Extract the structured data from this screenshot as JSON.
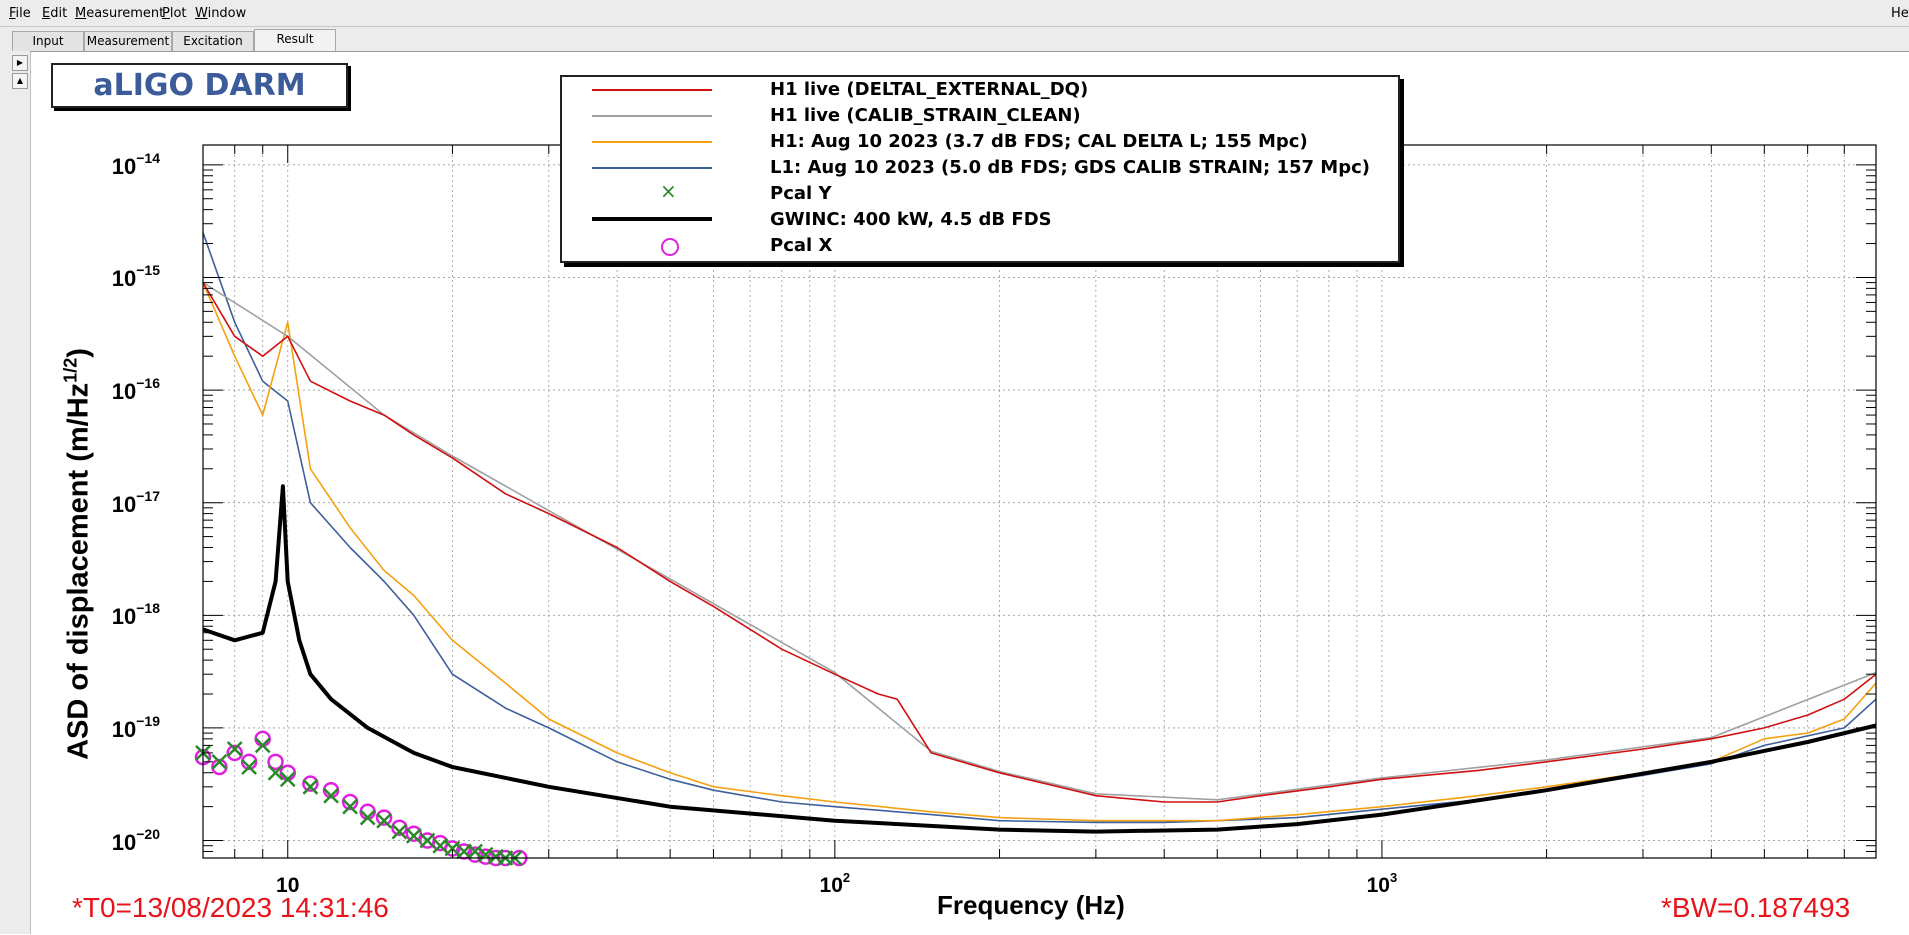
{
  "menubar": {
    "items": [
      {
        "label": "File",
        "key": "F",
        "rest": "ile"
      },
      {
        "label": "Edit",
        "key": "E",
        "rest": "dit"
      },
      {
        "label": "Measurement",
        "key": "M",
        "rest": "easurement"
      },
      {
        "label": "Plot",
        "key": "P",
        "rest": "lot"
      },
      {
        "label": "Window",
        "key": "W",
        "rest": "indow"
      }
    ],
    "help_fragment": "He"
  },
  "tabs": [
    {
      "label": "Input"
    },
    {
      "label": "Measurement"
    },
    {
      "label": "Excitation"
    },
    {
      "label": "Result",
      "active": true
    }
  ],
  "plot": {
    "title": "aLIGO DARM",
    "timestamp": "*T0=13/08/2023 14:31:46",
    "bandwidth": "*BW=0.187493"
  },
  "chart_data": {
    "type": "line",
    "xlabel": "Frequency (Hz)",
    "ylabel_main": "ASD of displacement (m/Hz",
    "ylabel_sup": "1/2",
    "ylabel_close": ")",
    "xscale": "log",
    "yscale": "log",
    "xlim": [
      7,
      8000
    ],
    "ylim": [
      7e-21,
      1.5e-14
    ],
    "grid": true,
    "legend_position": "top-center",
    "x_ticks": [
      {
        "base": "10",
        "exp": "",
        "value": 10
      },
      {
        "base": "10",
        "exp": "2",
        "value": 100
      },
      {
        "base": "10",
        "exp": "3",
        "value": 1000
      }
    ],
    "y_ticks": [
      {
        "base": "10",
        "exp": "−14",
        "value": 1e-14
      },
      {
        "base": "10",
        "exp": "−15",
        "value": 1e-15
      },
      {
        "base": "10",
        "exp": "−16",
        "value": 1e-16
      },
      {
        "base": "10",
        "exp": "−17",
        "value": 1e-17
      },
      {
        "base": "10",
        "exp": "−18",
        "value": 1e-18
      },
      {
        "base": "10",
        "exp": "−19",
        "value": 1e-19
      },
      {
        "base": "10",
        "exp": "−20",
        "value": 1e-20
      }
    ],
    "series": [
      {
        "name": "H1 live (DELTAL_EXTERNAL_DQ)",
        "color": "#d01010",
        "style": "line",
        "x": [
          7,
          8,
          9,
          10,
          11,
          13,
          15,
          17,
          20,
          25,
          30,
          40,
          50,
          60,
          80,
          100,
          120,
          130,
          150,
          200,
          300,
          400,
          500,
          600,
          800,
          1000,
          1500,
          2000,
          3000,
          4000,
          5000,
          6000,
          7000,
          8000
        ],
        "y": [
          9e-16,
          3e-16,
          2e-16,
          3e-16,
          1.2e-16,
          8e-17,
          6e-17,
          4e-17,
          2.5e-17,
          1.2e-17,
          8e-18,
          4e-18,
          2e-18,
          1.2e-18,
          5e-19,
          3e-19,
          2e-19,
          1.8e-19,
          6e-20,
          4e-20,
          2.5e-20,
          2.2e-20,
          2.2e-20,
          2.5e-20,
          3e-20,
          3.5e-20,
          4.2e-20,
          5e-20,
          6.5e-20,
          8e-20,
          1e-19,
          1.3e-19,
          1.8e-19,
          3e-19
        ]
      },
      {
        "name": "H1 live (CALIB_STRAIN_CLEAN)",
        "color": "#a0a0a0",
        "style": "line",
        "x": [
          7,
          10,
          15,
          20,
          30,
          50,
          100,
          150,
          200,
          300,
          500,
          1000,
          2000,
          4000,
          8000
        ],
        "y": [
          9e-16,
          3e-16,
          6e-17,
          2.6e-17,
          8.5e-18,
          2.1e-18,
          3.1e-19,
          6.2e-20,
          4.1e-20,
          2.6e-20,
          2.3e-20,
          3.6e-20,
          5.2e-20,
          8.2e-20,
          3.1e-19
        ]
      },
      {
        "name": "H1: Aug 10 2023 (3.7 dB FDS; CAL DELTA L; 155 Mpc)",
        "color": "#f5a010",
        "style": "line",
        "x": [
          7,
          8,
          9,
          10,
          11,
          13,
          15,
          17,
          20,
          25,
          30,
          40,
          50,
          60,
          80,
          100,
          150,
          200,
          300,
          400,
          500,
          700,
          1000,
          1500,
          2000,
          3000,
          4000,
          5000,
          6000,
          7000,
          8000
        ],
        "y": [
          9e-16,
          2e-16,
          6e-17,
          4e-16,
          2e-17,
          6e-18,
          2.5e-18,
          1.5e-18,
          6e-19,
          2.5e-19,
          1.2e-19,
          6e-20,
          4e-20,
          3e-20,
          2.5e-20,
          2.2e-20,
          1.8e-20,
          1.6e-20,
          1.5e-20,
          1.5e-20,
          1.5e-20,
          1.7e-20,
          2e-20,
          2.5e-20,
          3e-20,
          4e-20,
          5e-20,
          8e-20,
          9e-20,
          1.2e-19,
          2.5e-19
        ]
      },
      {
        "name": "L1: Aug 10 2023 (5.0 dB FDS; GDS CALIB STRAIN; 157 Mpc)",
        "color": "#3d5f9c",
        "style": "line",
        "x": [
          7,
          8,
          9,
          10,
          11,
          13,
          15,
          17,
          20,
          25,
          30,
          40,
          50,
          60,
          80,
          100,
          150,
          200,
          300,
          400,
          500,
          700,
          1000,
          1500,
          2000,
          3000,
          4000,
          5000,
          6000,
          7000,
          8000
        ],
        "y": [
          2.5e-15,
          4e-16,
          1.2e-16,
          8e-17,
          1e-17,
          4e-18,
          2e-18,
          1e-18,
          3e-19,
          1.5e-19,
          1e-19,
          5e-20,
          3.5e-20,
          2.8e-20,
          2.2e-20,
          2e-20,
          1.7e-20,
          1.5e-20,
          1.45e-20,
          1.45e-20,
          1.5e-20,
          1.6e-20,
          1.9e-20,
          2.3e-20,
          2.8e-20,
          3.8e-20,
          4.8e-20,
          7e-20,
          8.5e-20,
          1e-19,
          1.8e-19
        ]
      },
      {
        "name": "Pcal Y",
        "color": "#2a8a2a",
        "style": "cross",
        "x": [
          7,
          7.5,
          8,
          8.5,
          9,
          9.5,
          10,
          11,
          12,
          13,
          14,
          15,
          16,
          17,
          18,
          19,
          20,
          21,
          22,
          23,
          24,
          25,
          26
        ],
        "y": [
          6e-20,
          5e-20,
          6.5e-20,
          4.5e-20,
          7e-20,
          4e-20,
          3.5e-20,
          3e-20,
          2.5e-20,
          2e-20,
          1.6e-20,
          1.5e-20,
          1.2e-20,
          1.1e-20,
          1e-20,
          9e-21,
          8.5e-21,
          8e-21,
          8e-21,
          7.5e-21,
          7.2e-21,
          7e-21,
          7e-21
        ]
      },
      {
        "name": "GWINC: 400 kW, 4.5 dB FDS",
        "color": "#000000",
        "style": "thick",
        "x": [
          7,
          8,
          9,
          9.5,
          9.8,
          10,
          10.5,
          11,
          12,
          14,
          17,
          20,
          30,
          50,
          100,
          200,
          300,
          500,
          700,
          1000,
          2000,
          4000,
          6000,
          8000
        ],
        "y": [
          7.5e-19,
          6e-19,
          7e-19,
          2e-18,
          1.4e-17,
          2e-18,
          6e-19,
          3e-19,
          1.8e-19,
          1e-19,
          6e-20,
          4.5e-20,
          3e-20,
          2e-20,
          1.5e-20,
          1.25e-20,
          1.2e-20,
          1.25e-20,
          1.4e-20,
          1.7e-20,
          2.8e-20,
          5e-20,
          7.5e-20,
          1.05e-19
        ]
      },
      {
        "name": "Pcal X",
        "color": "#e020e0",
        "style": "circle",
        "x": [
          7,
          7.5,
          8,
          8.5,
          9,
          9.5,
          10,
          11,
          12,
          13,
          14,
          15,
          16,
          17,
          18,
          19,
          20,
          21,
          22,
          23,
          24,
          25,
          26.5
        ],
        "y": [
          5.5e-20,
          4.5e-20,
          6e-20,
          5e-20,
          8e-20,
          5e-20,
          4e-20,
          3.2e-20,
          2.8e-20,
          2.2e-20,
          1.8e-20,
          1.6e-20,
          1.3e-20,
          1.15e-20,
          1e-20,
          9.5e-21,
          8.5e-21,
          8e-21,
          7.5e-21,
          7.2e-21,
          7e-21,
          7e-21,
          7e-21
        ]
      }
    ]
  }
}
